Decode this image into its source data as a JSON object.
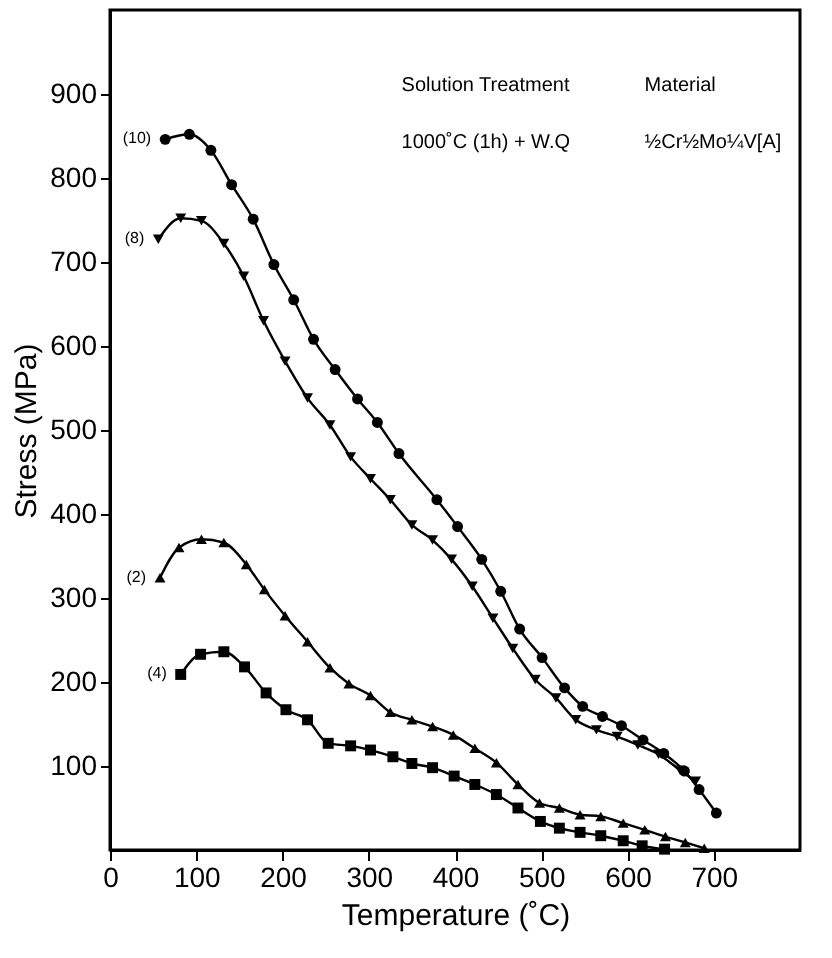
{
  "chart_data": {
    "type": "line",
    "xlabel": "Temperature (˚C)",
    "ylabel": "Stress (MPa)",
    "xlim": [
      0,
      800
    ],
    "xticks": [
      0,
      100,
      200,
      300,
      400,
      500,
      600,
      700
    ],
    "ylim": [
      0,
      1000
    ],
    "yticks": [
      100,
      200,
      300,
      400,
      500,
      600,
      700,
      800,
      900
    ],
    "annotations": [
      "Solution Treatment",
      "1000˚C (1h) + W.Q",
      "Material",
      "½Cr½Mo¼V[A]"
    ],
    "series": [
      {
        "name": "(10)",
        "color": "#000000",
        "marker": "circle",
        "x": [
          64,
          92,
          117,
          141,
          166,
          190,
          213,
          236,
          261,
          287,
          310,
          335,
          379,
          403,
          431,
          453,
          475,
          501,
          527,
          548,
          571,
          593,
          618,
          642,
          666,
          683,
          703
        ],
        "values": [
          846,
          852,
          833,
          792,
          751,
          697,
          655,
          608,
          572,
          537,
          509,
          472,
          417,
          385,
          346,
          308,
          263,
          229,
          193,
          171,
          159,
          148,
          131,
          115,
          94,
          72,
          44
        ]
      },
      {
        "name": "(8)",
        "color": "#000000",
        "marker": "triangle-down",
        "x": [
          56,
          82,
          106,
          132,
          155,
          178,
          203,
          229,
          255,
          279,
          302,
          325,
          350,
          374,
          396,
          420,
          444,
          467,
          493,
          517,
          540,
          564,
          588,
          612,
          636,
          661,
          679
        ],
        "values": [
          727,
          752,
          749,
          722,
          683,
          630,
          582,
          538,
          506,
          468,
          442,
          417,
          387,
          369,
          346,
          314,
          276,
          240,
          203,
          181,
          155,
          143,
          135,
          125,
          114,
          95,
          82
        ]
      },
      {
        "name": "(2)",
        "color": "#000000",
        "marker": "triangle-up",
        "x": [
          58,
          80,
          106,
          132,
          158,
          179,
          203,
          229,
          255,
          277,
          302,
          325,
          350,
          374,
          398,
          423,
          448,
          473,
          498,
          521,
          545,
          569,
          595,
          620,
          644,
          667,
          689
        ],
        "values": [
          324,
          360,
          370,
          366,
          340,
          310,
          279,
          248,
          217,
          198,
          184,
          164,
          155,
          147,
          137,
          121,
          104,
          78,
          56,
          50,
          42,
          40,
          32,
          24,
          16,
          9,
          2
        ]
      },
      {
        "name": "(4)",
        "color": "#000000",
        "marker": "square",
        "x": [
          82,
          105,
          132,
          156,
          181,
          204,
          229,
          253,
          279,
          302,
          328,
          350,
          374,
          399,
          423,
          448,
          473,
          499,
          521,
          545,
          569,
          595,
          617,
          643
        ],
        "values": [
          209,
          233,
          236,
          218,
          187,
          167,
          155,
          127,
          124,
          119,
          111,
          103,
          98,
          88,
          78,
          66,
          50,
          34,
          26,
          21,
          17,
          11,
          5,
          1
        ]
      }
    ]
  }
}
